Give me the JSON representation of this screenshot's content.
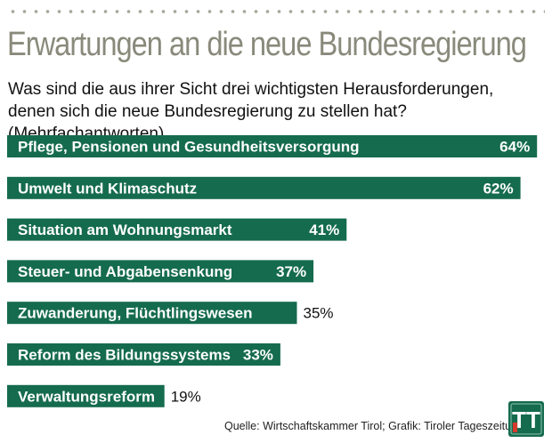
{
  "header": {
    "title": "Erwartungen an die neue Bundesregierung",
    "subtitle": "Was sind die aus ihrer Sicht drei wichtigsten Herausforderungen, denen sich die neue Bundesregierung zu stellen hat? (Mehrfachantworten)"
  },
  "footer": {
    "source": "Quelle: Wirtschaftskammer Tirol; Grafik: Tiroler Tageszeitung"
  },
  "logo": {
    "text": "TT",
    "icon": "tiroler-tageszeitung-logo"
  },
  "colors": {
    "bar": "#156b4e",
    "label_text": "#ffffff",
    "value_outside": "#111111",
    "title": "#8a8a7c",
    "logo_bg": "#156b4e"
  },
  "chart_data": {
    "type": "bar",
    "orientation": "horizontal",
    "categories": [
      "Pflege, Pensionen und Gesundheitsversorgung",
      "Umwelt und Klimaschutz",
      "Situation am Wohnungsmarkt",
      "Steuer- und Abgabensenkung",
      "Zuwanderung, Flüchtlingswesen",
      "Reform des Bildungssystems",
      "Verwaltungsreform"
    ],
    "values": [
      64,
      62,
      41,
      37,
      35,
      33,
      19
    ],
    "value_labels": [
      "64%",
      "62%",
      "41%",
      "37%",
      "35%",
      "33%",
      "19%"
    ],
    "unit": "%",
    "grid": false,
    "legend": "none"
  }
}
